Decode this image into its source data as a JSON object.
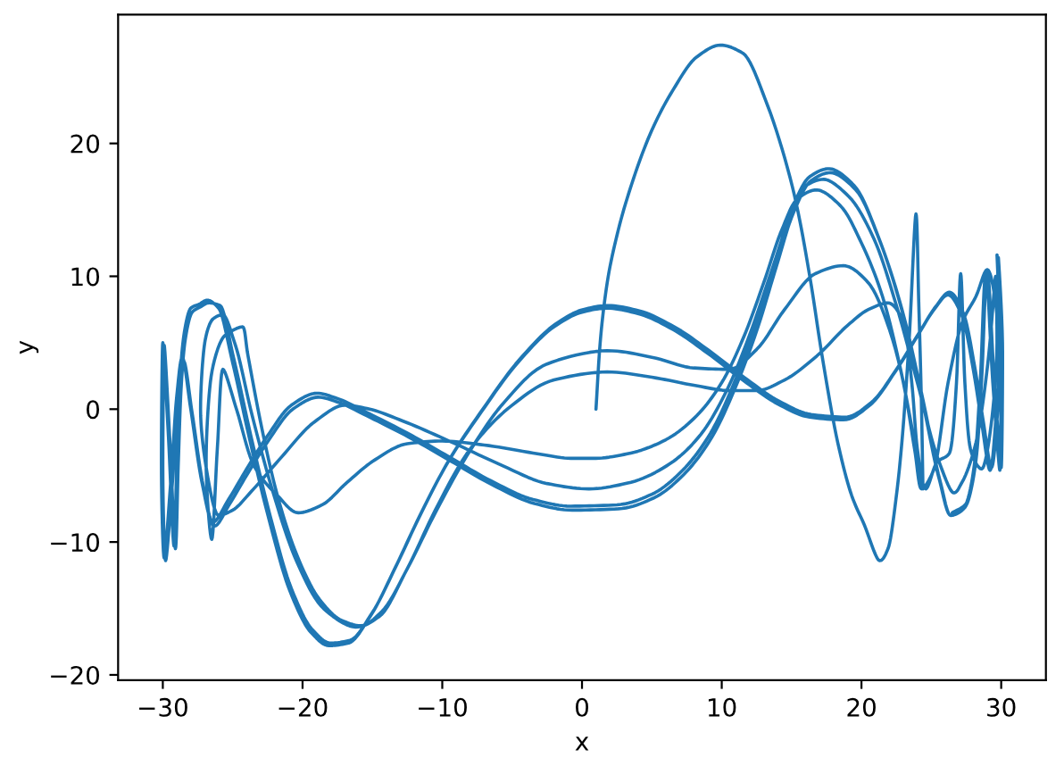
{
  "chart_data": {
    "type": "line",
    "xlabel": "x",
    "ylabel": "y",
    "color": "#1f77b4",
    "xlim": [
      -33.2,
      33.2
    ],
    "ylim": [
      -20.4,
      29.7
    ],
    "xticks": [
      {
        "value": -30,
        "label": "−30"
      },
      {
        "value": -20,
        "label": "−20"
      },
      {
        "value": -10,
        "label": "−10"
      },
      0,
      10,
      20,
      30
    ],
    "yticks": [
      {
        "value": -20,
        "label": "−20"
      },
      {
        "value": -10,
        "label": "−10"
      },
      0,
      10,
      20
    ],
    "x": [
      1.0,
      1.3,
      1.8,
      2.6,
      3.7,
      5.0,
      6.5,
      8.2,
      9.9,
      11.5,
      13.3,
      15.2,
      16.3,
      17.2,
      18.3,
      19.3,
      20.2,
      21.3,
      21.9,
      22.5,
      22.9,
      23.4,
      23.9,
      24.1,
      24.3,
      24.4,
      23.8,
      22.8,
      21.5,
      20.0,
      18.5,
      16.8,
      15.4,
      14.3,
      13.0,
      11.6,
      10.0,
      8.2,
      6.0,
      3.5,
      1.0,
      -0.8,
      -3.5,
      -7.0,
      -10.0,
      -12.5,
      -14.8,
      -16.8,
      -18.6,
      -20.3,
      -21.8,
      -23.5,
      -24.7,
      -25.7,
      -26.1,
      -26.5,
      -26.9,
      -26.6,
      -25.6,
      -24.3,
      -23.9,
      -23.0,
      -21.8,
      -20.4,
      -18.8,
      -17.2,
      -15.8,
      -14.3,
      -12.5,
      -10.5,
      -8.0,
      -5.0,
      -2.0,
      1.8,
      5.0,
      8.0,
      10.5,
      12.5,
      14.5,
      16.8,
      19.0,
      20.5,
      21.9,
      23.0,
      23.6,
      24.0,
      24.6,
      25.4,
      26.3,
      26.8,
      27.1,
      27.4,
      27.8,
      28.6,
      29.3,
      29.7,
      29.6,
      29.1,
      28.2,
      27.2,
      26.6,
      25.4,
      24.0,
      22.5,
      20.9,
      19.1,
      17.3,
      16.0,
      14.8,
      13.5,
      12.0,
      10.4,
      8.5,
      6.3,
      3.5,
      0.5,
      -2.5,
      -6.0,
      -9.5,
      -12.8,
      -15.2,
      -17.0,
      -19.2,
      -21.5,
      -23.5,
      -25.0,
      -26.0,
      -26.8,
      -27.3,
      -27.0,
      -26.4,
      -25.7,
      -24.8,
      -23.6,
      -22.1,
      -20.4,
      -18.5,
      -16.2,
      -14.5,
      -12.5,
      -10.4,
      -8.0,
      -5.5,
      -2.5,
      1.8,
      5.0,
      8.0,
      10.5,
      12.5,
      14.5,
      16.7,
      18.7,
      20.5,
      22.0,
      23.0,
      23.8,
      24.3,
      25.2,
      26.2,
      27.2,
      28.2,
      29.0,
      29.6,
      30.0,
      29.9,
      29.5,
      29.0,
      28.6,
      28.1,
      27.4,
      26.4,
      25.5,
      24.2,
      22.8,
      21.2,
      19.5,
      17.7,
      16.3,
      15.0,
      13.8,
      12.4,
      10.9,
      9.2,
      7.2,
      5.0,
      2.5,
      -0.8,
      -3.5,
      -6.5,
      -9.5,
      -12.5,
      -15.5,
      -17.5,
      -19.0,
      -20.8,
      -22.5,
      -24.0,
      -25.3,
      -26.4,
      -27.2,
      -28.0,
      -28.6,
      -29.0,
      -29.4,
      -29.9,
      -30.1,
      -30.0,
      -29.6,
      -29.2,
      -29.0,
      -28.8,
      -28.5,
      -28.0,
      -27.4,
      -26.8,
      -26.0,
      -25.0,
      -23.8,
      -22.4,
      -20.9,
      -19.4,
      -18.1,
      -16.7,
      -15.1,
      -13.4,
      -11.6,
      -9.6,
      -7.2,
      -4.6,
      -2.0,
      0.0,
      1.8,
      4.0,
      6.5,
      9.0,
      11.5,
      14.0,
      16.3,
      18.7,
      20.6,
      22.4,
      24.0,
      25.2,
      26.2,
      27.2,
      28.0,
      28.6,
      29.2,
      29.6,
      29.9,
      29.7,
      30.0,
      29.9,
      29.4,
      28.9,
      28.5,
      28.1,
      27.4,
      26.4,
      25.6,
      24.3,
      22.9,
      21.3,
      19.6,
      17.8,
      16.4,
      15.1,
      13.9,
      12.5,
      11.0,
      9.3,
      7.3,
      5.1,
      2.6,
      -0.7,
      -3.4,
      -6.4,
      -9.4,
      -12.4,
      -15.4,
      -17.4,
      -18.9,
      -20.7,
      -22.4,
      -23.9,
      -25.2,
      -26.3,
      -27.1,
      -27.9,
      -28.5,
      -28.9,
      -29.3,
      -29.8,
      -30.0,
      -29.9,
      -29.5,
      -29.1,
      -28.9,
      -28.7,
      -28.4,
      -27.9,
      -27.3,
      -26.7,
      -25.9,
      -24.9,
      -23.7,
      -22.3,
      -20.8,
      -19.3,
      -18.0,
      -16.6,
      -15.0,
      -13.3,
      -11.5,
      -9.5,
      -7.1,
      -4.5,
      -1.9,
      0.1,
      1.9,
      4.1,
      6.6,
      9.1,
      11.6,
      14.1,
      16.4,
      18.8,
      20.7,
      22.5,
      24.1,
      25.3,
      26.3,
      27.3,
      28.1,
      28.7,
      29.3,
      29.7,
      30.0,
      29.8,
      30.1,
      30.0,
      29.5,
      29.0,
      28.6,
      28.2,
      27.5,
      26.5
    ],
    "values": [
      0.0,
      5.0,
      9.5,
      13.5,
      17.4,
      21.0,
      24.0,
      26.5,
      27.4,
      26.8,
      22.8,
      16.1,
      10.0,
      3.9,
      -2.5,
      -6.5,
      -8.7,
      -11.4,
      -10.5,
      -6.5,
      -2.4,
      5.0,
      14.7,
      8.0,
      0.0,
      -6.0,
      -2.5,
      3.0,
      8.5,
      12.5,
      15.3,
      16.5,
      15.8,
      13.5,
      9.5,
      5.5,
      2.0,
      -0.5,
      -2.3,
      -3.3,
      -3.7,
      -3.7,
      -3.3,
      -2.7,
      -2.4,
      -2.6,
      -3.8,
      -5.5,
      -7.2,
      -7.8,
      -6.5,
      -4.2,
      -0.1,
      3.0,
      -3.0,
      -9.8,
      -4.0,
      2.0,
      5.5,
      6.2,
      4.0,
      -1.0,
      -6.5,
      -11.0,
      -14.3,
      -15.9,
      -16.3,
      -15.2,
      -12.0,
      -7.6,
      -3.0,
      0.3,
      2.2,
      2.8,
      2.4,
      1.8,
      1.4,
      1.4,
      2.2,
      4.0,
      6.3,
      7.5,
      8.0,
      6.5,
      2.0,
      -3.0,
      -6.0,
      -4.0,
      -3.3,
      2.0,
      10.2,
      2.0,
      -3.0,
      -4.5,
      -1.0,
      5.0,
      10.0,
      4.0,
      -2.5,
      -5.5,
      -6.3,
      -3.5,
      2.0,
      7.8,
      12.8,
      16.0,
      17.3,
      16.8,
      14.2,
      10.2,
      5.6,
      1.5,
      -1.9,
      -4.1,
      -5.5,
      -6.0,
      -5.6,
      -4.1,
      -2.4,
      -0.9,
      0.0,
      0.3,
      -1.0,
      -3.6,
      -6.0,
      -7.6,
      -8.0,
      -5.0,
      0.0,
      5.0,
      6.8,
      7.1,
      4.8,
      -0.5,
      -6.3,
      -11.5,
      -15.0,
      -16.4,
      -15.6,
      -12.0,
      -7.6,
      -3.1,
      0.6,
      3.4,
      4.4,
      3.9,
      3.1,
      3.0,
      4.5,
      7.5,
      10.2,
      10.8,
      9.5,
      6.0,
      2.0,
      -3.0,
      -6.0,
      -4.5,
      2.0,
      6.5,
      8.5,
      10.5,
      8.0,
      1.0,
      -4.6,
      2.0,
      10.0,
      3.0,
      -4.5,
      -7.4,
      -8.0,
      -5.0,
      1.5,
      7.8,
      13.0,
      16.8,
      18.1,
      17.5,
      15.0,
      11.0,
      6.2,
      2.0,
      -1.8,
      -4.6,
      -6.4,
      -7.2,
      -7.3,
      -6.8,
      -5.4,
      -3.6,
      -1.8,
      -0.2,
      0.8,
      1.2,
      0.3,
      -2.0,
      -4.5,
      -6.8,
      -8.5,
      -5.5,
      0.0,
      3.9,
      1.0,
      -5.0,
      -11.2,
      -4.0,
      5.0,
      -2.0,
      -10.3,
      -4.0,
      1.7,
      5.5,
      7.6,
      7.9,
      8.2,
      7.6,
      3.5,
      -2.2,
      -8.3,
      -13.7,
      -16.8,
      -17.8,
      -17.6,
      -15.5,
      -12.0,
      -8.0,
      -4.0,
      -0.2,
      3.5,
      6.2,
      7.3,
      7.6,
      7.2,
      6.0,
      4.2,
      2.2,
      0.4,
      -0.6,
      -0.8,
      0.3,
      2.8,
      5.5,
      7.5,
      8.6,
      7.0,
      3.0,
      -1.0,
      -4.6,
      -1.0,
      5.0,
      11.6,
      4.0,
      -4.6,
      2.0,
      10.3,
      2.0,
      -4.0,
      -7.3,
      -8.0,
      -5.3,
      1.2,
      7.5,
      12.7,
      16.5,
      17.8,
      17.2,
      14.7,
      10.7,
      5.9,
      1.7,
      -2.1,
      -4.9,
      -6.7,
      -7.5,
      -7.6,
      -7.1,
      -5.7,
      -3.9,
      -2.1,
      -0.5,
      0.5,
      0.9,
      0.0,
      -2.3,
      -4.8,
      -7.1,
      -8.8,
      -5.8,
      -0.3,
      3.6,
      0.7,
      -5.3,
      -11.4,
      -4.3,
      4.8,
      -2.3,
      -10.5,
      -4.3,
      1.4,
      5.2,
      7.3,
      7.7,
      8.0,
      7.8,
      3.7,
      -2.0,
      -8.1,
      -13.5,
      -16.6,
      -17.6,
      -17.4,
      -15.3,
      -11.8,
      -7.8,
      -3.8,
      0.0,
      3.7,
      6.4,
      7.5,
      7.8,
      7.4,
      6.2,
      4.4,
      2.4,
      0.6,
      -0.4,
      -0.6,
      0.5,
      3.0,
      5.7,
      7.7,
      8.8,
      7.2,
      3.2,
      -0.8,
      -4.4,
      -0.8,
      5.2,
      11.4,
      4.2,
      -4.4,
      2.2,
      10.5,
      2.2,
      -3.8,
      -7.1,
      -7.8
    ]
  }
}
